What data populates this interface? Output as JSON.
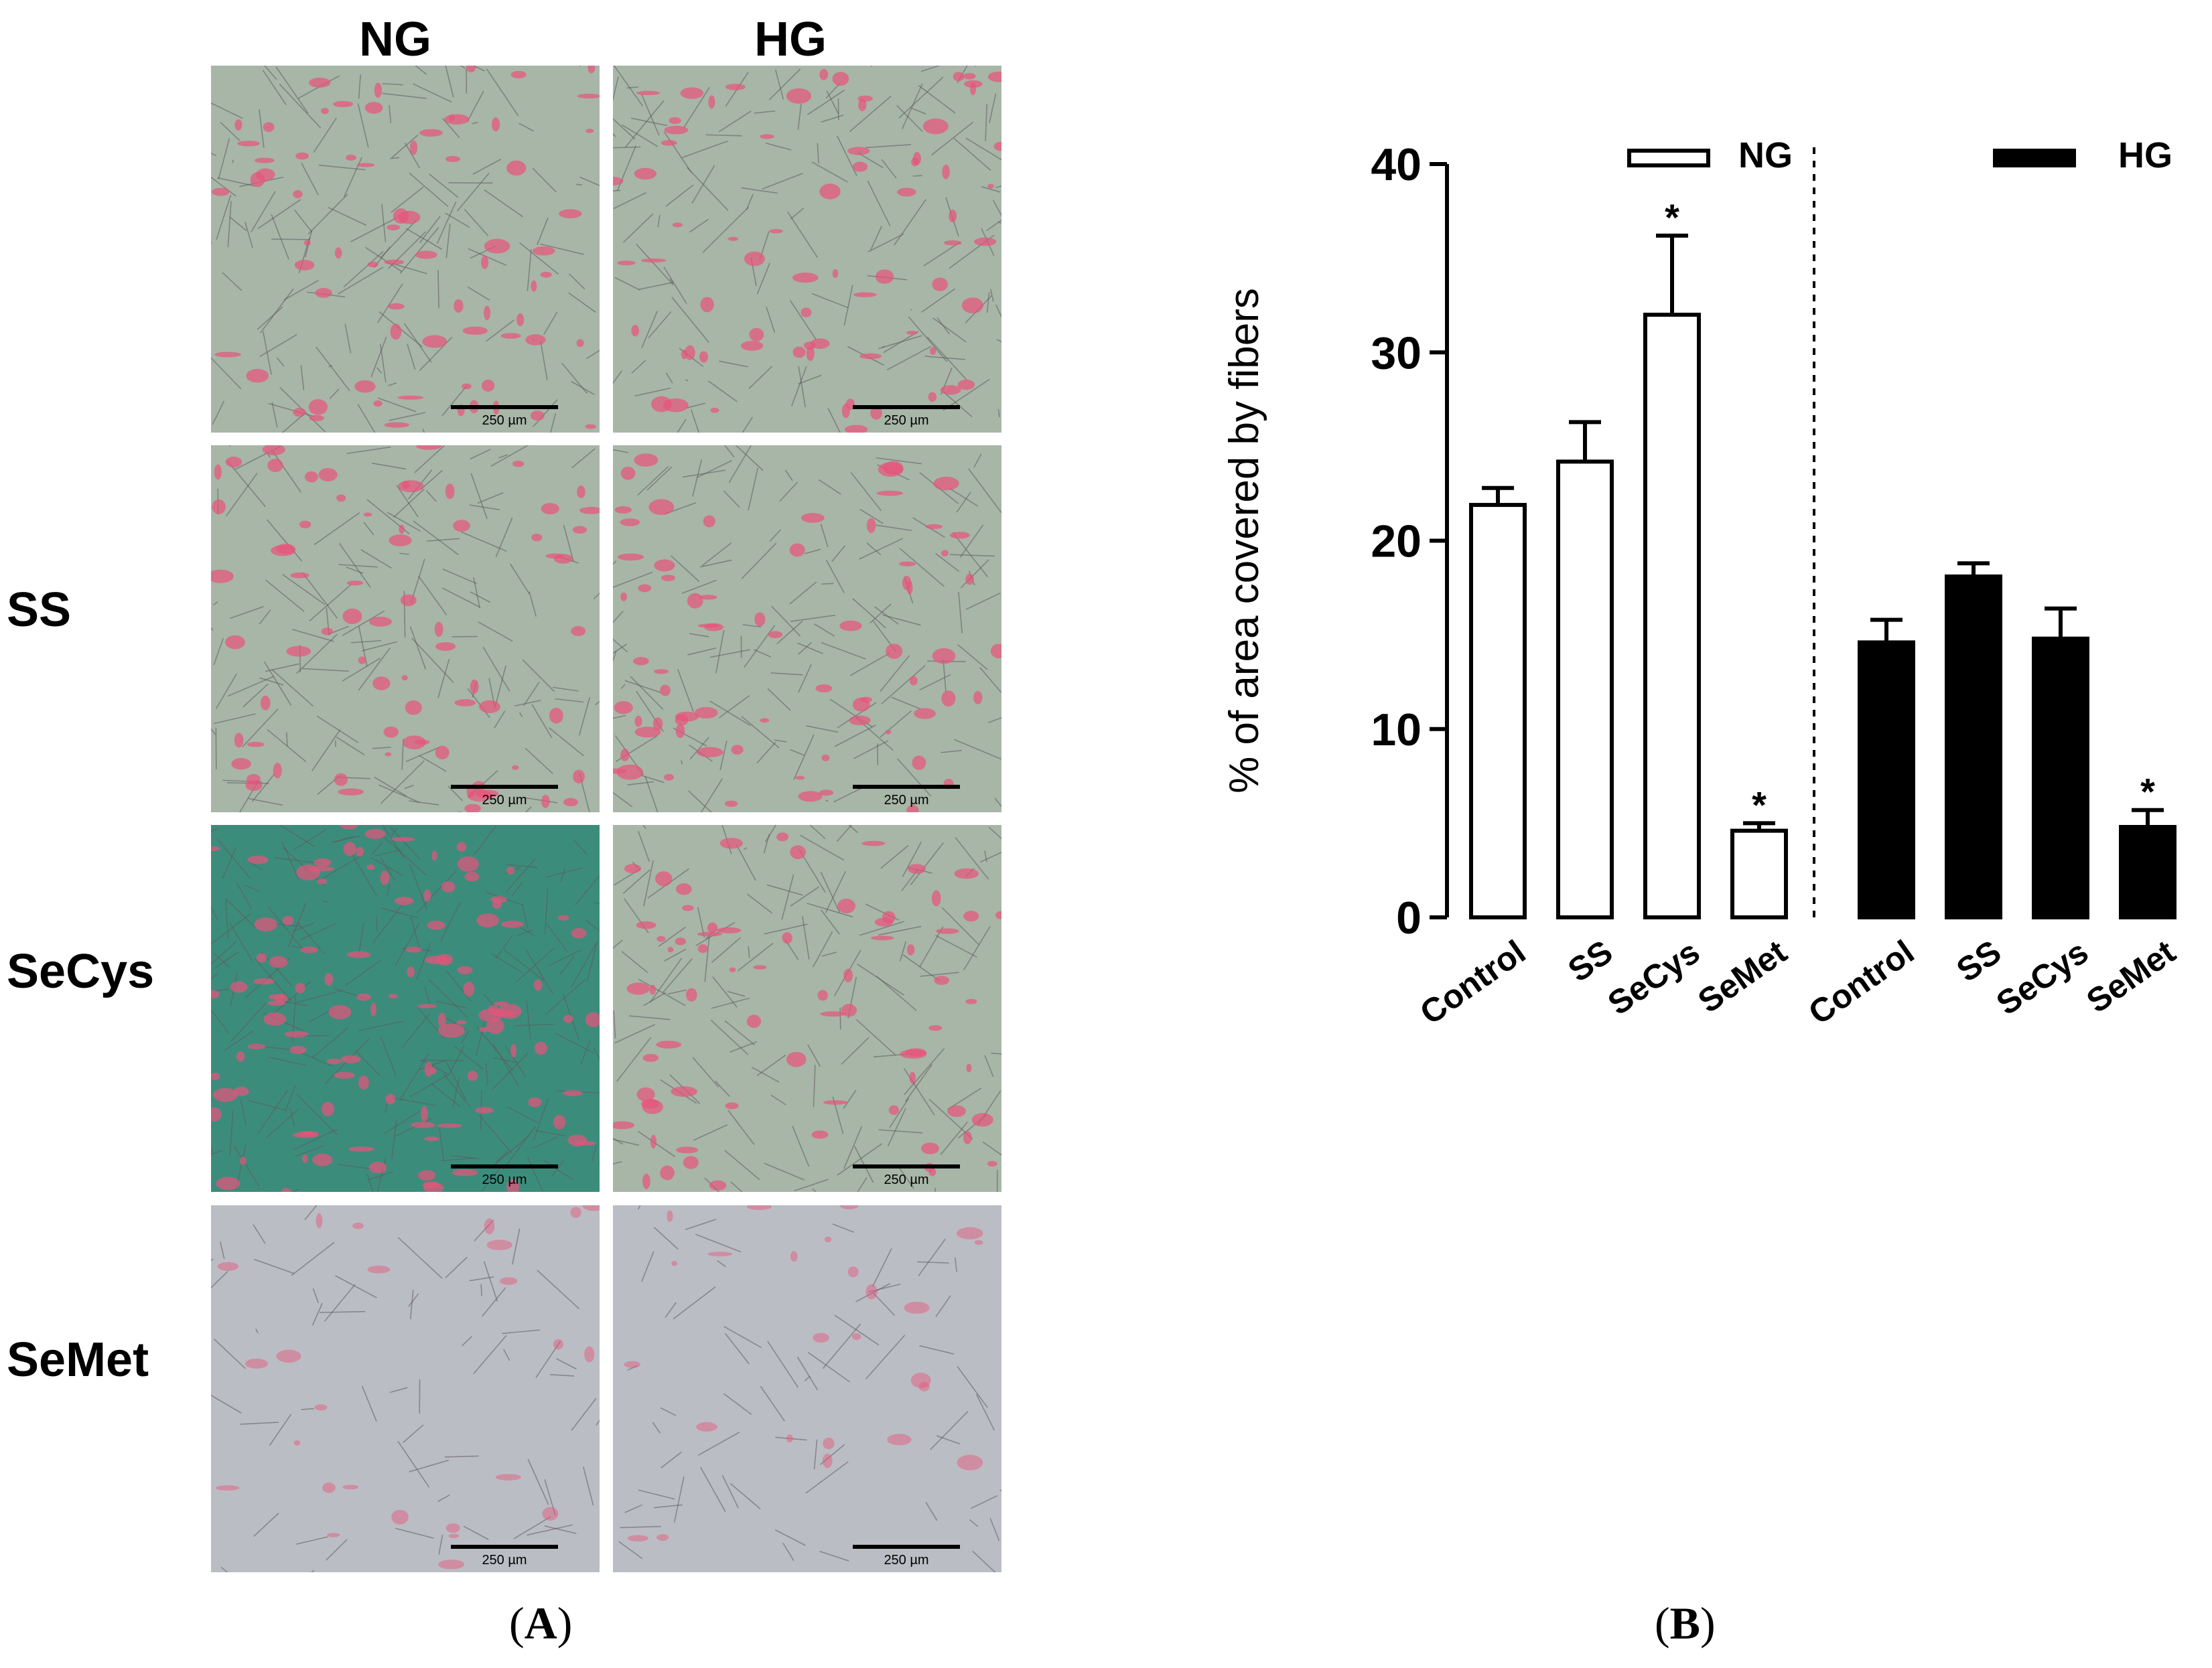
{
  "panel_a": {
    "column_headers": [
      "NG",
      "HG"
    ],
    "row_labels": [
      "",
      "SS",
      "SeCys",
      "SeMet"
    ],
    "scale_bar_label": "250 µm",
    "label_open": "(",
    "label_letter": "A",
    "label_close": ")",
    "colors": {
      "tissue_bg": "#a7b6a7",
      "stain": "#e8527a",
      "secys_bg": "#3c8c7c",
      "semet_bg": "#bbbdc4"
    }
  },
  "panel_b": {
    "label_open": "(",
    "label_letter": "B",
    "label_close": ")"
  },
  "chart_data": {
    "type": "bar",
    "ylabel": "% of area covered by fibers",
    "xlabel": "",
    "ylim": [
      0,
      40
    ],
    "yticks": [
      0,
      10,
      20,
      30,
      40
    ],
    "grid": false,
    "legend_placement": "top",
    "categories": [
      "Control",
      "SS",
      "SeCys",
      "SeMet"
    ],
    "series": [
      {
        "name": "NG",
        "fill": "#ffffff",
        "values": [
          21.9,
          24.2,
          32.0,
          4.6
        ],
        "errors": [
          0.9,
          2.1,
          4.2,
          0.4
        ],
        "significant": [
          "",
          "",
          "*",
          "*"
        ]
      },
      {
        "name": "HG",
        "fill": "#000000",
        "values": [
          14.6,
          18.1,
          14.8,
          4.8
        ],
        "errors": [
          1.2,
          0.7,
          1.6,
          0.9
        ],
        "significant": [
          "",
          "",
          "",
          "*"
        ]
      }
    ]
  }
}
